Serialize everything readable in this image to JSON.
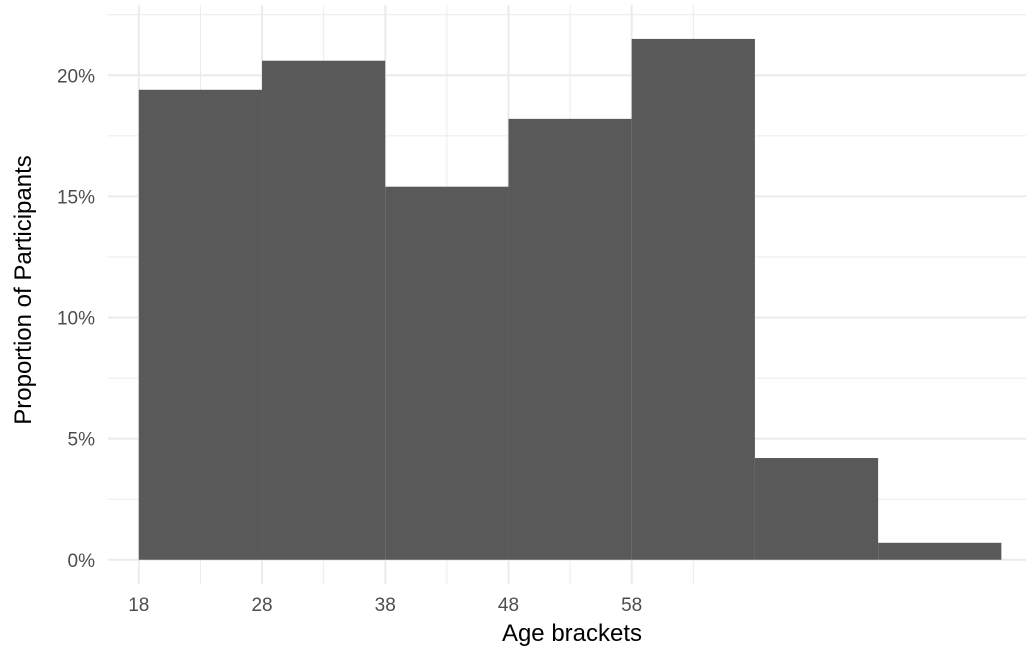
{
  "chart_data": {
    "type": "bar",
    "title": "",
    "xlabel": "Age brackets",
    "ylabel": "Proportion of Participants",
    "bin_edges": [
      18,
      28,
      38,
      48,
      58,
      68,
      78,
      88
    ],
    "values": [
      19.4,
      20.6,
      15.4,
      18.2,
      21.5,
      4.2,
      0.7
    ],
    "value_unit": "%",
    "x_ticks": [
      18,
      28,
      38,
      48,
      58
    ],
    "y_ticks": [
      0,
      5,
      10,
      15,
      20
    ],
    "y_tick_labels": [
      "0%",
      "5%",
      "10%",
      "15%",
      "20%"
    ],
    "xlim": [
      15.5,
      90
    ],
    "ylim": [
      -1,
      22.9
    ],
    "grid": true,
    "legend": "none",
    "bar_color": "#595959",
    "grid_color": "#ebebeb"
  }
}
